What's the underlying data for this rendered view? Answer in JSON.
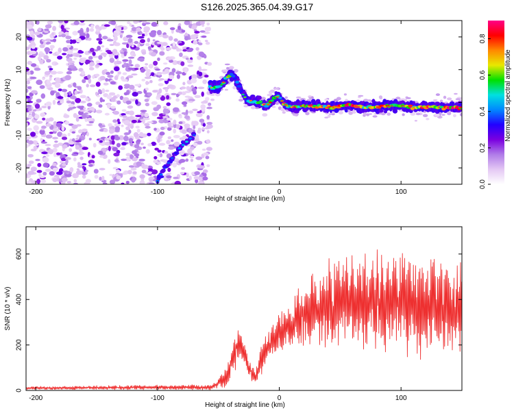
{
  "figure": {
    "title": "S126.2025.365.04.39.G17"
  },
  "chart_data": [
    {
      "type": "heatmap",
      "name": "spectrogram",
      "xlabel": "Height of straight line (km)",
      "ylabel": "Frequency (Hz)",
      "xlim": [
        -208,
        150
      ],
      "ylim": [
        -25,
        25
      ],
      "xticks": [
        -200,
        -100,
        0,
        100
      ],
      "yticks": [
        -20,
        -10,
        0,
        10,
        20
      ],
      "colorbar": {
        "label": "Normalized spectral amplitude",
        "range": [
          0.0,
          0.9
        ],
        "ticks": [
          0.0,
          0.2,
          0.4,
          0.6,
          0.8
        ],
        "colors": [
          "#ffffff",
          "#e4c8f4",
          "#b07ce8",
          "#7a00e0",
          "#2200ff",
          "#0088ff",
          "#00e0e0",
          "#00e000",
          "#e8e800",
          "#ff8800",
          "#ff0000",
          "#ff0088"
        ]
      },
      "noise_region": {
        "x": [
          -208,
          -57
        ],
        "y": [
          -25,
          25
        ],
        "typical_amplitude": 0.1
      },
      "signal_ridge": {
        "x": [
          -57,
          -52,
          -47,
          -42,
          -38,
          -34,
          -30,
          -26,
          -22,
          -18,
          -14,
          -10,
          -6,
          -2,
          2,
          6,
          10,
          20,
          30,
          40,
          50,
          60,
          70,
          80,
          90,
          100,
          110,
          120,
          130,
          140,
          150
        ],
        "freq": [
          4.5,
          4.5,
          5.5,
          8,
          8.5,
          5.5,
          2.5,
          0.5,
          0.5,
          0,
          -0.5,
          -1,
          0.5,
          2,
          0.5,
          -1,
          -1.5,
          -1,
          -1,
          -1.5,
          -1,
          -1,
          -1.5,
          -1.5,
          -1,
          -1,
          -1.5,
          -1.5,
          -1.5,
          -1.5,
          -1.5
        ],
        "amplitude": [
          0.4,
          0.5,
          0.4,
          0.5,
          0.45,
          0.4,
          0.35,
          0.35,
          0.6,
          0.45,
          0.6,
          0.5,
          0.55,
          0.4,
          0.6,
          0.5,
          0.55,
          0.6,
          0.7,
          0.6,
          0.7,
          0.7,
          0.6,
          0.65,
          0.7,
          0.6,
          0.65,
          0.65,
          0.6,
          0.75,
          0.65
        ]
      },
      "secondary_ridge": {
        "x": [
          -100,
          -94,
          -88,
          -82,
          -76,
          -70
        ],
        "freq": [
          -24,
          -20,
          -17,
          -14,
          -12,
          -10
        ],
        "amplitude": [
          0.35,
          0.3,
          0.3,
          0.35,
          0.45,
          0.3
        ]
      }
    },
    {
      "type": "line",
      "name": "snr",
      "xlabel": "Height of straight line (km)",
      "ylabel": "SNR (10 * v/v)",
      "xlim": [
        -208,
        150
      ],
      "ylim": [
        0,
        720
      ],
      "xticks": [
        -200,
        -100,
        0,
        100
      ],
      "yticks": [
        0,
        200,
        400,
        600
      ],
      "color": "#ee3030",
      "series": [
        {
          "name": "SNR",
          "x": [
            -208,
            -150,
            -100,
            -70,
            -55,
            -45,
            -40,
            -36,
            -32,
            -28,
            -24,
            -20,
            -16,
            -12,
            -8,
            -4,
            0,
            5,
            10,
            15,
            20,
            25,
            30,
            40,
            50,
            60,
            70,
            80,
            90,
            100,
            110,
            120,
            130,
            140,
            150
          ],
          "mean": [
            10,
            12,
            14,
            14,
            14,
            50,
            110,
            180,
            210,
            150,
            90,
            50,
            110,
            180,
            200,
            230,
            250,
            270,
            290,
            320,
            340,
            350,
            360,
            370,
            390,
            380,
            380,
            380,
            370,
            390,
            370,
            380,
            360,
            370,
            360
          ],
          "spread": [
            6,
            8,
            10,
            10,
            10,
            40,
            60,
            80,
            60,
            60,
            40,
            30,
            60,
            60,
            70,
            70,
            80,
            90,
            100,
            120,
            140,
            160,
            170,
            180,
            190,
            190,
            200,
            200,
            200,
            210,
            200,
            200,
            200,
            200,
            200
          ]
        }
      ]
    }
  ]
}
